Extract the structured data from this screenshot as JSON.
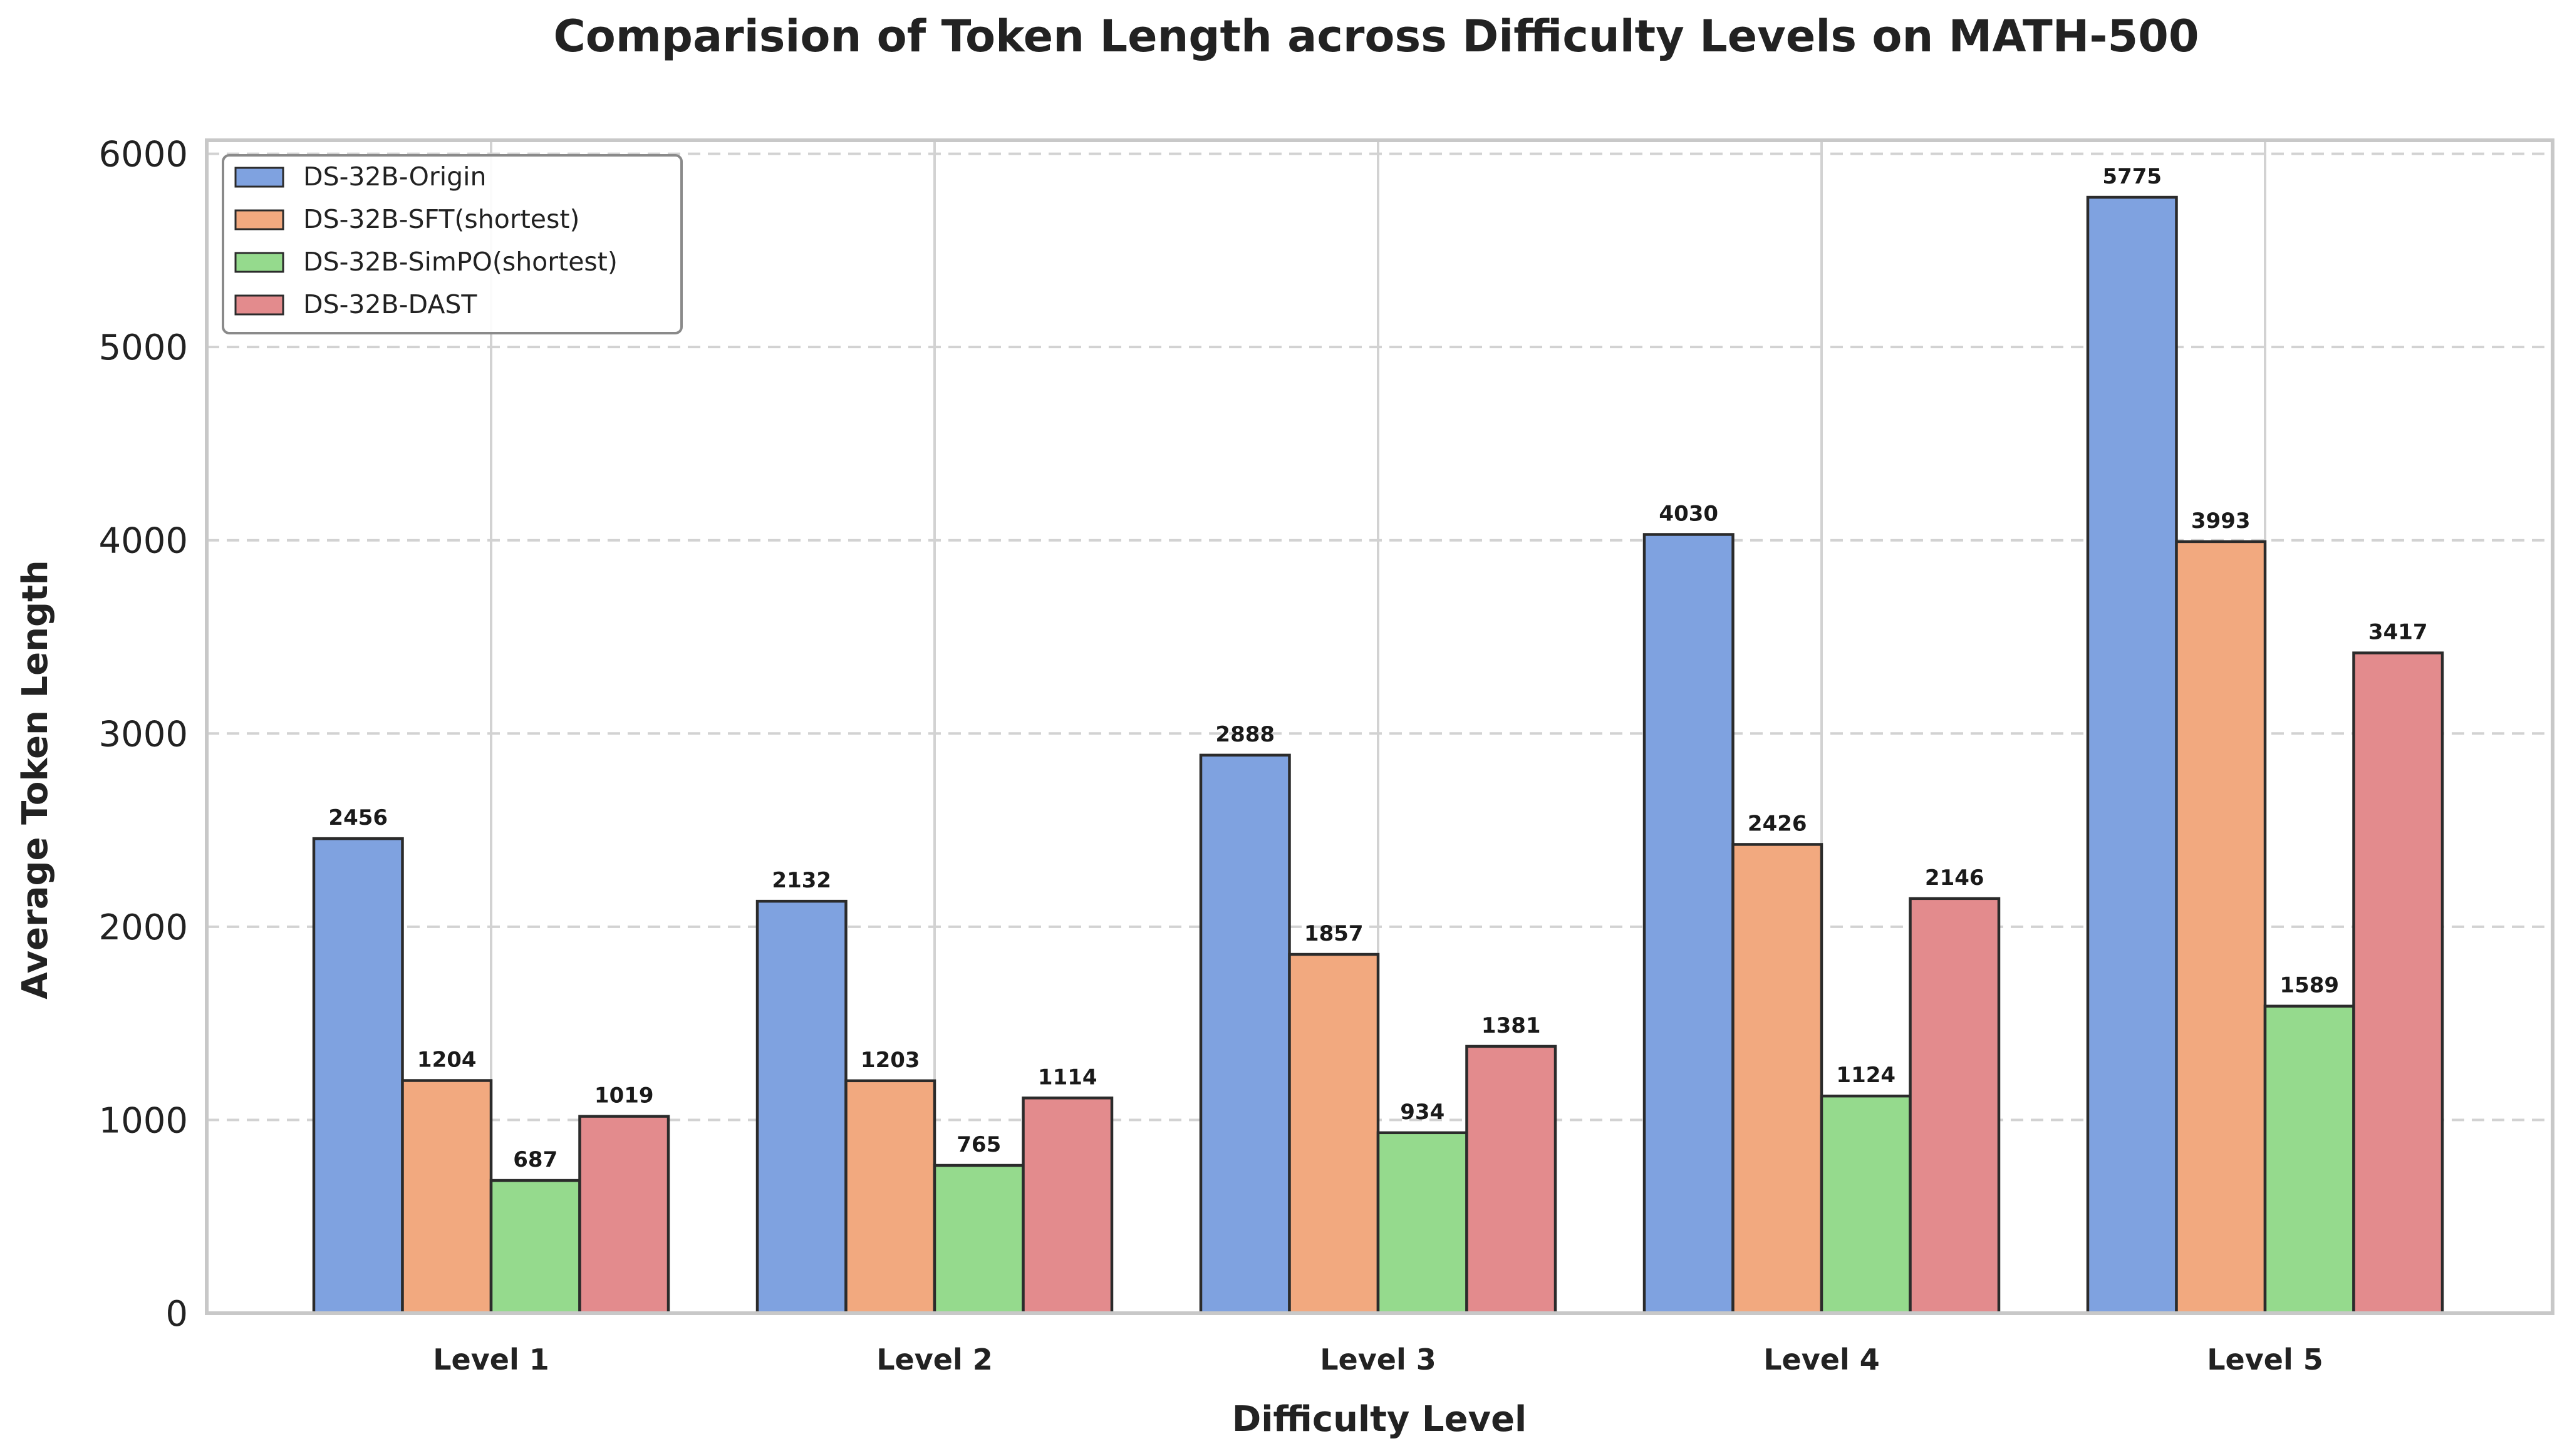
{
  "chart_data": {
    "type": "bar",
    "title": "Comparision of Token Length across Difficulty Levels on MATH-500",
    "xlabel": "Difficulty Level",
    "ylabel": "Average Token Length",
    "categories": [
      "Level 1",
      "Level 2",
      "Level 3",
      "Level 4",
      "Level 5"
    ],
    "ylim": [
      0,
      6070
    ],
    "yticks": [
      0,
      1000,
      2000,
      3000,
      4000,
      5000,
      6000
    ],
    "grid": true,
    "legend_position": "top-left",
    "series": [
      {
        "name": "DS-32B-Origin",
        "color": "#7fa2e0",
        "values": [
          2456,
          2132,
          2888,
          4030,
          5775
        ]
      },
      {
        "name": "DS-32B-SFT(shortest)",
        "color": "#f2a97f",
        "values": [
          1204,
          1203,
          1857,
          2426,
          3993
        ]
      },
      {
        "name": "DS-32B-SimPO(shortest)",
        "color": "#95da8d",
        "values": [
          687,
          765,
          934,
          1124,
          1589
        ]
      },
      {
        "name": "DS-32B-DAST",
        "color": "#e38b8d",
        "values": [
          1019,
          1114,
          1381,
          2146,
          3417
        ]
      }
    ]
  }
}
